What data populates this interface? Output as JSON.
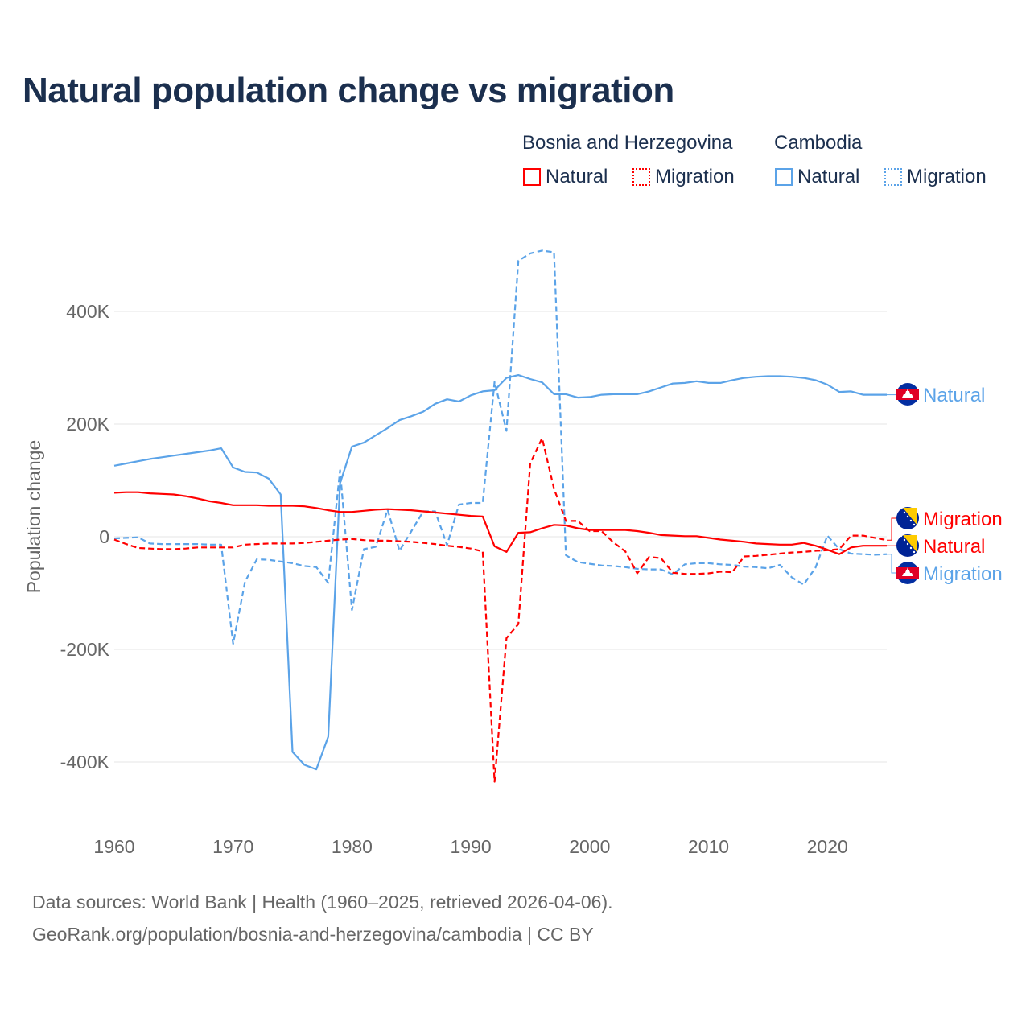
{
  "chart_data": {
    "type": "line",
    "title": "Natural population change vs migration",
    "ylabel": "Population change",
    "xlabel": "",
    "ylim": [
      -500000,
      520000
    ],
    "xlim": [
      1960,
      2025
    ],
    "grid": true,
    "yticks": [
      {
        "v": 400000,
        "label": "400K"
      },
      {
        "v": 200000,
        "label": "200K"
      },
      {
        "v": 0,
        "label": "0"
      },
      {
        "v": -200000,
        "label": "-200K"
      },
      {
        "v": -400000,
        "label": "-400K"
      }
    ],
    "xticks": [
      {
        "v": 1960,
        "label": "1960"
      },
      {
        "v": 1970,
        "label": "1970"
      },
      {
        "v": 1980,
        "label": "1980"
      },
      {
        "v": 1990,
        "label": "1990"
      },
      {
        "v": 2000,
        "label": "2000"
      },
      {
        "v": 2010,
        "label": "2010"
      },
      {
        "v": 2020,
        "label": "2020"
      }
    ],
    "x_start": 1960,
    "legend": {
      "placement": "top-right",
      "groups": [
        {
          "country": "Bosnia and Herzegovina",
          "items": [
            "Natural",
            "Migration"
          ]
        },
        {
          "country": "Cambodia",
          "items": [
            "Natural",
            "Migration"
          ]
        }
      ]
    },
    "series": [
      {
        "name": "Cambodia Natural",
        "label": "Natural",
        "country": "Cambodia",
        "color": "#5ba3e8",
        "dash": false,
        "values_k": [
          126,
          130,
          134,
          138,
          141,
          144,
          147,
          150,
          153,
          157,
          123,
          115,
          114,
          103,
          75,
          -382,
          -405,
          -413,
          -355,
          95,
          160,
          167,
          180,
          193,
          207,
          214,
          222,
          236,
          244,
          240,
          251,
          258,
          260,
          282,
          287,
          280,
          274,
          253,
          253,
          247,
          248,
          252,
          253,
          253,
          253,
          258,
          265,
          272,
          273,
          276,
          273,
          273,
          278,
          282,
          284,
          285,
          285,
          284,
          282,
          278,
          270,
          257,
          258,
          252,
          252,
          252
        ]
      },
      {
        "name": "Cambodia Migration",
        "label": "Migration",
        "country": "Cambodia",
        "color": "#5ba3e8",
        "dash": true,
        "values_k": [
          -3,
          -2,
          -1,
          -12,
          -13,
          -13,
          -13,
          -13,
          -14,
          -14,
          -190,
          -80,
          -40,
          -41,
          -44,
          -47,
          -52,
          -54,
          -82,
          118,
          -130,
          -22,
          -18,
          48,
          -25,
          10,
          45,
          45,
          -15,
          57,
          60,
          60,
          275,
          188,
          490,
          503,
          508,
          505,
          -33,
          -45,
          -48,
          -51,
          -52,
          -54,
          -57,
          -58,
          -58,
          -67,
          -49,
          -47,
          -47,
          -49,
          -50,
          -53,
          -54,
          -56,
          -50,
          -72,
          -85,
          -55,
          2,
          -22,
          -30,
          -31,
          -32,
          -31
        ]
      },
      {
        "name": "Bosnia and Herzegovina Natural",
        "label": "Natural",
        "country": "Bosnia and Herzegovina",
        "color": "#ff0000",
        "dash": false,
        "values_k": [
          78,
          79,
          79,
          77,
          76,
          75,
          72,
          68,
          63,
          60,
          56,
          56,
          56,
          55,
          55,
          55,
          54,
          51,
          47,
          44,
          44,
          46,
          48,
          49,
          48,
          47,
          45,
          43,
          41,
          39,
          37,
          36,
          -17,
          -27,
          7,
          8,
          15,
          21,
          20,
          15,
          12,
          12,
          12,
          12,
          10,
          7,
          3,
          2,
          1,
          1,
          -2,
          -5,
          -7,
          -9,
          -12,
          -13,
          -14,
          -14,
          -11,
          -16,
          -23,
          -31,
          -19,
          -16,
          -16,
          -16
        ]
      },
      {
        "name": "Bosnia and Herzegovina Migration",
        "label": "Migration",
        "country": "Bosnia and Herzegovina",
        "color": "#ff0000",
        "dash": true,
        "values_k": [
          -5,
          -13,
          -20,
          -21,
          -22,
          -22,
          -21,
          -19,
          -19,
          -19,
          -19,
          -14,
          -13,
          -12,
          -12,
          -12,
          -11,
          -9,
          -7,
          -5,
          -4,
          -6,
          -7,
          -7,
          -8,
          -9,
          -11,
          -13,
          -16,
          -18,
          -21,
          -26,
          -435,
          -180,
          -155,
          130,
          175,
          85,
          28,
          28,
          10,
          10,
          -10,
          -26,
          -65,
          -36,
          -38,
          -64,
          -66,
          -66,
          -65,
          -62,
          -63,
          -35,
          -34,
          -32,
          -30,
          -28,
          -27,
          -25,
          -24,
          -22,
          2,
          2,
          -2,
          -6
        ]
      }
    ],
    "end_labels": [
      {
        "series": 0,
        "text": "Natural",
        "flag": "cambodia-flag-icon"
      },
      {
        "series": 3,
        "text": "Migration",
        "flag": "bosnia-flag-icon"
      },
      {
        "series": 2,
        "text": "Natural",
        "flag": "bosnia-flag-icon"
      },
      {
        "series": 1,
        "text": "Migration",
        "flag": "cambodia-flag-icon"
      }
    ]
  },
  "legend": {
    "bosnia": "Bosnia and Herzegovina",
    "cambodia": "Cambodia",
    "natural": "Natural",
    "migration": "Migration"
  },
  "footer": {
    "line1": "Data sources: World Bank | Health (1960–2025, retrieved 2026-04-06).",
    "line2": "GeoRank.org/population/bosnia-and-herzegovina/cambodia | CC BY"
  },
  "colors": {
    "bosnia": "#ff0000",
    "cambodia": "#5ba3e8",
    "title": "#1b2f4e"
  }
}
